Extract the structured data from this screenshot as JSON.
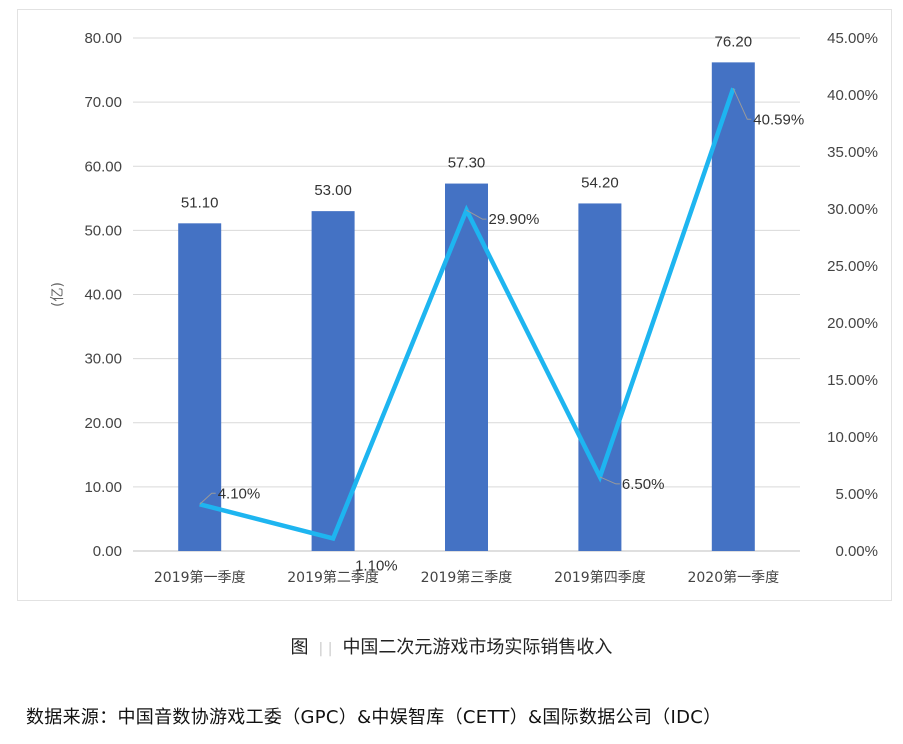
{
  "chart_data": {
    "type": "bar+line",
    "categories": [
      "2019第一季度",
      "2019第二季度",
      "2019第三季度",
      "2019第四季度",
      "2020第一季度"
    ],
    "series": [
      {
        "name": "",
        "type": "bar",
        "axis": "left",
        "values": [
          51.1,
          53.0,
          57.3,
          54.2,
          76.2
        ],
        "labels": [
          "51.10",
          "53.00",
          "57.30",
          "54.20",
          "76.20"
        ],
        "color": "#4472C4"
      },
      {
        "name": "",
        "type": "line",
        "axis": "right",
        "values": [
          4.1,
          1.1,
          29.9,
          6.5,
          40.59
        ],
        "labels": [
          "4.10%",
          "1.10%",
          "29.90%",
          "6.50%",
          "40.59%"
        ],
        "color": "#1EB5F0"
      }
    ],
    "ylabel": "(亿)",
    "ylim": [
      0,
      80
    ],
    "yticks": [
      "0.00",
      "10.00",
      "20.00",
      "30.00",
      "40.00",
      "50.00",
      "60.00",
      "70.00",
      "80.00"
    ],
    "y2lim": [
      0,
      45
    ],
    "y2ticks": [
      "0.00%",
      "5.00%",
      "10.00%",
      "15.00%",
      "20.00%",
      "25.00%",
      "30.00%",
      "35.00%",
      "40.00%",
      "45.00%"
    ],
    "grid": true,
    "legend": "none"
  },
  "caption": {
    "prefix": "图",
    "title": "中国二次元游戏市场实际销售收入"
  },
  "source": "数据来源：中国音数协游戏工委（GPC）&中娱智库（CETT）&国际数据公司（IDC）"
}
